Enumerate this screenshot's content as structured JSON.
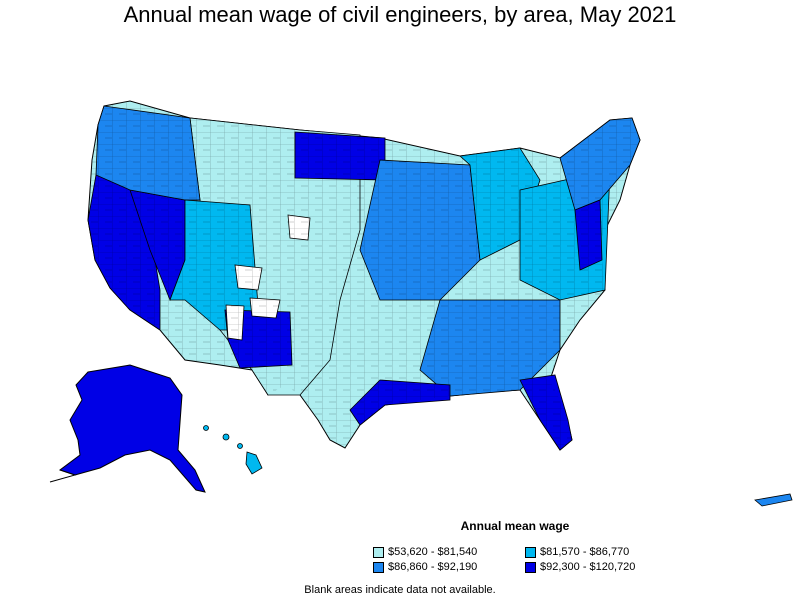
{
  "title": "Annual mean wage of civil engineers, by area, May 2021",
  "legend": {
    "title": "Annual mean wage",
    "items": [
      {
        "label": "$53,620 - $81,540",
        "color": "#aeeef0"
      },
      {
        "label": "$81,570 - $86,770",
        "color": "#00b8f0"
      },
      {
        "label": "$86,860 - $92,190",
        "color": "#1c86f0"
      },
      {
        "label": "$92,300 - $120,720",
        "color": "#0000e6"
      }
    ]
  },
  "note": "Blank areas indicate data not available."
}
